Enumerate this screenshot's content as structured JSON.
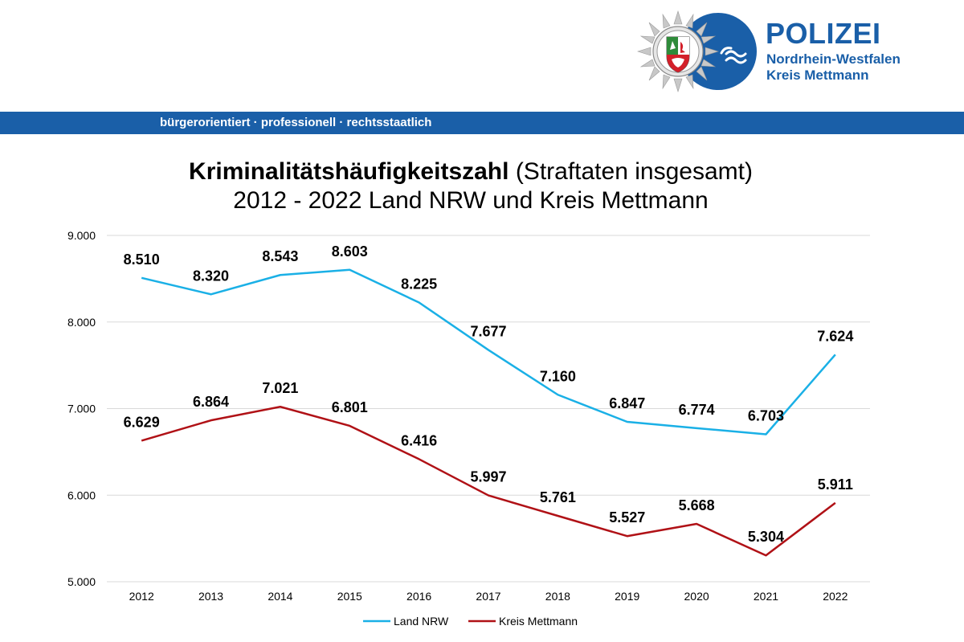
{
  "header": {
    "brand_title": "POLIZEI",
    "brand_sub1": "Nordrhein-Westfalen",
    "brand_sub2": "Kreis Mettmann",
    "tagline": "bürgerorientiert · professionell · rechtsstaatlich",
    "brand_color": "#1a5fa8"
  },
  "chart_data": {
    "type": "line",
    "title_bold": "Kriminalitätshäufigkeitszahl",
    "title_rest": " (Straftaten insgesamt)",
    "subtitle": "2012 - 2022 Land NRW und Kreis Mettmann",
    "x": [
      "2012",
      "2013",
      "2014",
      "2015",
      "2016",
      "2017",
      "2018",
      "2019",
      "2020",
      "2021",
      "2022"
    ],
    "ylim": [
      5000,
      9000
    ],
    "yticks": [
      "5.000",
      "6.000",
      "7.000",
      "8.000",
      "9.000"
    ],
    "ytick_values": [
      5000,
      6000,
      7000,
      8000,
      9000
    ],
    "grid": true,
    "legend_position": "bottom",
    "series": [
      {
        "name": "Land NRW",
        "color": "#1ab0e6",
        "values": [
          8510,
          8320,
          8543,
          8603,
          8225,
          7677,
          7160,
          6847,
          6774,
          6703,
          7624
        ],
        "labels": [
          "8.510",
          "8.320",
          "8.543",
          "8.603",
          "8.225",
          "7.677",
          "7.160",
          "6.847",
          "6.774",
          "6.703",
          "7.624"
        ]
      },
      {
        "name": "Kreis Mettmann",
        "color": "#b01116",
        "values": [
          6629,
          6864,
          7021,
          6801,
          6416,
          5997,
          5761,
          5527,
          5668,
          5304,
          5911
        ],
        "labels": [
          "6.629",
          "6.864",
          "7.021",
          "6.801",
          "6.416",
          "5.997",
          "5.761",
          "5.527",
          "5.668",
          "5.304",
          "5.911"
        ]
      }
    ]
  }
}
